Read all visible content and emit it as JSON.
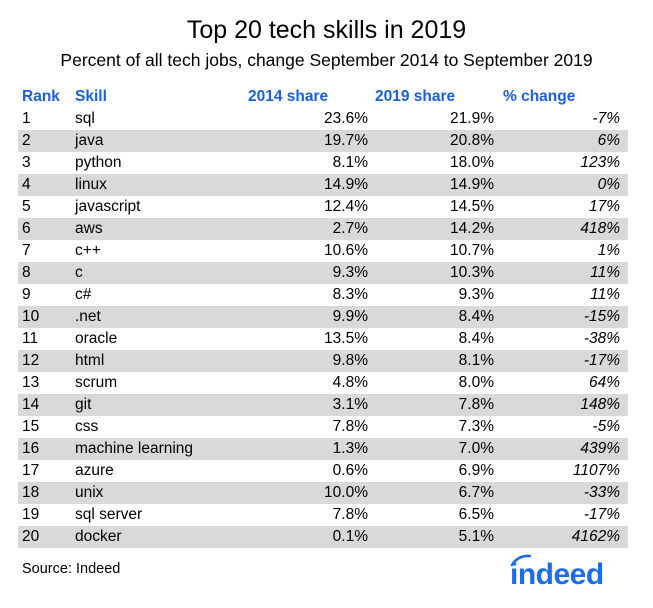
{
  "chart_data": {
    "type": "table",
    "title": "Top 20 tech skills in 2019",
    "subtitle": "Percent of all tech jobs, change September 2014 to September 2019",
    "columns": [
      "Rank",
      "Skill",
      "2014 share",
      "2019 share",
      "% change"
    ],
    "rows": [
      [
        "1",
        "sql",
        "23.6%",
        "21.9%",
        "-7%"
      ],
      [
        "2",
        "java",
        "19.7%",
        "20.8%",
        "6%"
      ],
      [
        "3",
        "python",
        "8.1%",
        "18.0%",
        "123%"
      ],
      [
        "4",
        "linux",
        "14.9%",
        "14.9%",
        "0%"
      ],
      [
        "5",
        "javascript",
        "12.4%",
        "14.5%",
        "17%"
      ],
      [
        "6",
        "aws",
        "2.7%",
        "14.2%",
        "418%"
      ],
      [
        "7",
        "c++",
        "10.6%",
        "10.7%",
        "1%"
      ],
      [
        "8",
        "c",
        "9.3%",
        "10.3%",
        "11%"
      ],
      [
        "9",
        "c#",
        "8.3%",
        "9.3%",
        "11%"
      ],
      [
        "10",
        ".net",
        "9.9%",
        "8.4%",
        "-15%"
      ],
      [
        "11",
        "oracle",
        "13.5%",
        "8.4%",
        "-38%"
      ],
      [
        "12",
        "html",
        "9.8%",
        "8.1%",
        "-17%"
      ],
      [
        "13",
        "scrum",
        "4.8%",
        "8.0%",
        "64%"
      ],
      [
        "14",
        "git",
        "3.1%",
        "7.8%",
        "148%"
      ],
      [
        "15",
        "css",
        "7.8%",
        "7.3%",
        "-5%"
      ],
      [
        "16",
        "machine learning",
        "1.3%",
        "7.0%",
        "439%"
      ],
      [
        "17",
        "azure",
        "0.6%",
        "6.9%",
        "1107%"
      ],
      [
        "18",
        "unix",
        "10.0%",
        "6.7%",
        "-33%"
      ],
      [
        "19",
        "sql server",
        "7.8%",
        "6.5%",
        "-17%"
      ],
      [
        "20",
        "docker",
        "0.1%",
        "5.1%",
        "4162%"
      ]
    ],
    "header_color": "#1a5fe0",
    "stripe_color": "#d9d9d9",
    "source": "Source: Indeed"
  },
  "logo": {
    "text": "indeed",
    "color": "#1a6cf0"
  }
}
